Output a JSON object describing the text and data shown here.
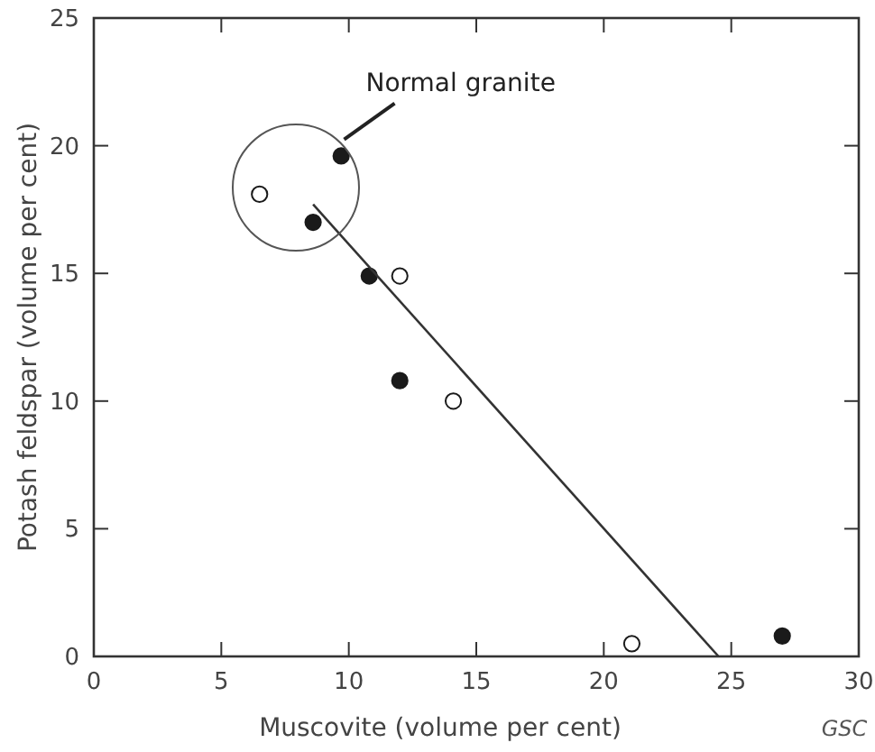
{
  "chart_data": {
    "type": "scatter",
    "xlabel": "Muscovite (volume per cent)",
    "ylabel": "Potash feldspar (volume per cent)",
    "xlim": [
      0,
      30
    ],
    "ylim": [
      0,
      25
    ],
    "xticks": [
      0,
      5,
      10,
      15,
      20,
      25,
      30
    ],
    "yticks": [
      0,
      5,
      10,
      15,
      20,
      25
    ],
    "grid": false,
    "series": [
      {
        "color": "#1a1a1a",
        "marker": "circle",
        "x": [
          9.7,
          8.6,
          10.8,
          12.0,
          27.0
        ],
        "values": [
          19.6,
          17.0,
          14.9,
          10.8,
          0.8
        ]
      },
      {
        "color": "#ffffff",
        "marker": "circle",
        "x": [
          6.5,
          12.0,
          14.1,
          21.1
        ],
        "values": [
          18.1,
          14.9,
          10.0,
          0.5
        ]
      },
      {
        "type": "line",
        "color": "#333333",
        "x": [
          8.6,
          24.5
        ],
        "values": [
          17.7,
          0
        ]
      }
    ],
    "annotations": [
      "Normal granite",
      "GSC"
    ]
  }
}
